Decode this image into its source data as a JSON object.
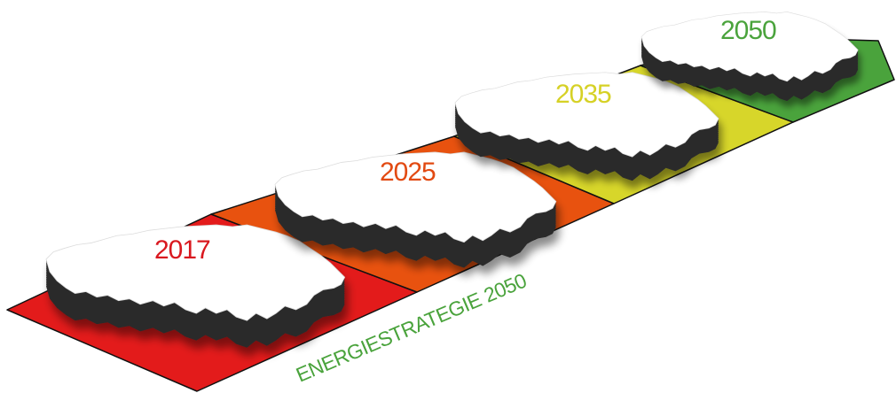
{
  "diagram": {
    "strategy_label": "ENERGIESTRATEGIE 2050",
    "strategy_color": "#4aa33c",
    "stages": [
      {
        "year": "2017",
        "color": "#e31b1b"
      },
      {
        "year": "2025",
        "color": "#e8520f"
      },
      {
        "year": "2035",
        "color": "#d7d62a"
      },
      {
        "year": "2050",
        "color": "#4aa33c"
      }
    ],
    "label_colors": [
      "#d9181f",
      "#e24a12",
      "#d6d126",
      "#4aa33c"
    ],
    "map_top_color": "#ffffff",
    "map_side_color": "#2b2b2b",
    "outline_color": "#111111"
  }
}
